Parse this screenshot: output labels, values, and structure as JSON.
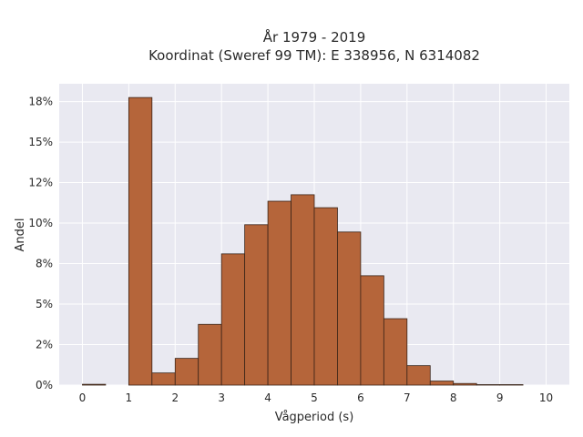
{
  "chart_data": {
    "type": "bar",
    "title_lines": [
      "År 1979 - 2019",
      "Koordinat (Sweref 99 TM): E 338956, N 6314082"
    ],
    "xlabel": "Vågperiod (s)",
    "ylabel": "Andel",
    "bin_width": 0.5,
    "bins_start": [
      0,
      0.5,
      1,
      1.5,
      2,
      2.5,
      3,
      3.5,
      4,
      4.5,
      5,
      5.5,
      6,
      6.5,
      7,
      7.5,
      8,
      8.5,
      9,
      9.5
    ],
    "values": [
      0.0005,
      0,
      0.1775,
      0.0075,
      0.0165,
      0.0375,
      0.081,
      0.099,
      0.1135,
      0.1175,
      0.1095,
      0.0945,
      0.0675,
      0.041,
      0.012,
      0.0025,
      0.001,
      0.0003,
      0.0003,
      0
    ],
    "xlim": [
      -0.5,
      10.5
    ],
    "ylim": [
      0,
      0.186
    ],
    "xticks": [
      0,
      1,
      2,
      3,
      4,
      5,
      6,
      7,
      8,
      9,
      10
    ],
    "xtick_labels": [
      "0",
      "1",
      "2",
      "3",
      "4",
      "5",
      "6",
      "7",
      "8",
      "9",
      "10"
    ],
    "yticks": [
      0,
      0.025,
      0.05,
      0.075,
      0.1,
      0.125,
      0.15,
      0.175
    ],
    "ytick_labels": [
      "0%",
      "2%",
      "5%",
      "8%",
      "10%",
      "12%",
      "15%",
      "18%"
    ],
    "grid": true,
    "colors": {
      "bar_fill": "#b5653a",
      "bar_stroke": "#3a2418",
      "plot_bg": "#e9e9f1",
      "grid": "#ffffff"
    }
  }
}
